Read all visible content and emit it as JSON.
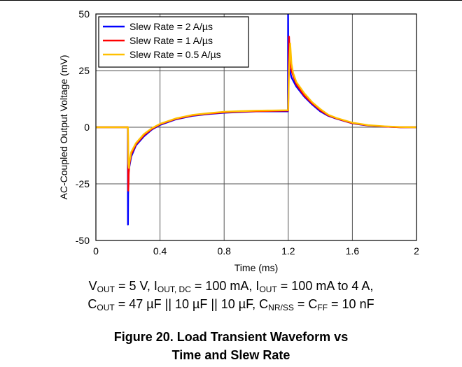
{
  "chart_data": {
    "type": "line",
    "title": "",
    "xlabel": "Time (ms)",
    "ylabel": "AC-Coupled Output Voltage (mV)",
    "xlim": [
      0,
      2
    ],
    "ylim": [
      -50,
      50
    ],
    "x_ticks": [
      0,
      0.4,
      0.8,
      1.2,
      1.6,
      2
    ],
    "x_tick_labels": [
      "0",
      "0.4",
      "0.8",
      "1.2",
      "1.6",
      "2"
    ],
    "y_ticks": [
      -50,
      -25,
      0,
      25,
      50
    ],
    "y_tick_labels": [
      "-50",
      "-25",
      "0",
      "25",
      "50"
    ],
    "grid": true,
    "legend_position": "top-left",
    "series": [
      {
        "name": "Slew Rate = 2 A/µs",
        "color": "#0000ff",
        "x": [
          0,
          0.195,
          0.199,
          0.2,
          0.201,
          0.205,
          0.22,
          0.25,
          0.3,
          0.35,
          0.4,
          0.5,
          0.6,
          0.7,
          0.8,
          0.9,
          1.0,
          1.1,
          1.198,
          1.199,
          1.2,
          1.202,
          1.21,
          1.22,
          1.25,
          1.3,
          1.35,
          1.4,
          1.45,
          1.5,
          1.6,
          1.7,
          1.8,
          1.9,
          2.0
        ],
        "y": [
          0,
          0,
          0,
          -43,
          -30,
          -19,
          -13,
          -8,
          -4,
          -1,
          1,
          3.5,
          5,
          5.8,
          6.4,
          6.7,
          7,
          7,
          7,
          50,
          34,
          27,
          25,
          22,
          18,
          13.5,
          10,
          7,
          5,
          3.8,
          1.7,
          0.7,
          0.3,
          0,
          0
        ]
      },
      {
        "name": "Slew Rate = 1 A/µs",
        "color": "#ff0000",
        "x": [
          0,
          0.195,
          0.2,
          0.202,
          0.205,
          0.21,
          0.22,
          0.25,
          0.3,
          0.35,
          0.4,
          0.5,
          0.6,
          0.7,
          0.8,
          0.9,
          1.0,
          1.1,
          1.198,
          1.2,
          1.205,
          1.21,
          1.22,
          1.25,
          1.3,
          1.35,
          1.4,
          1.45,
          1.5,
          1.6,
          1.7,
          1.8,
          1.9,
          2.0
        ],
        "y": [
          0,
          0,
          0,
          -28,
          -20,
          -16,
          -12,
          -7.5,
          -3.5,
          -0.7,
          1.3,
          3.7,
          5.2,
          6,
          6.6,
          6.9,
          7.1,
          7.2,
          7.3,
          7.3,
          40,
          30,
          25,
          19,
          14,
          10.5,
          7.5,
          5.2,
          3.9,
          1.8,
          0.8,
          0.3,
          0,
          0
        ]
      },
      {
        "name": "Slew Rate = 0.5 A/µs",
        "color": "#ffc000",
        "x": [
          0,
          0.195,
          0.2,
          0.203,
          0.206,
          0.21,
          0.22,
          0.25,
          0.3,
          0.35,
          0.4,
          0.5,
          0.6,
          0.7,
          0.8,
          0.9,
          1.0,
          1.1,
          1.199,
          1.205,
          1.212,
          1.22,
          1.23,
          1.25,
          1.3,
          1.35,
          1.4,
          1.45,
          1.5,
          1.6,
          1.7,
          1.8,
          1.9,
          2.0
        ],
        "y": [
          0,
          0,
          0,
          -16,
          -18,
          -15,
          -11,
          -7,
          -3,
          -0.4,
          1.5,
          3.9,
          5.4,
          6.2,
          6.8,
          7.1,
          7.3,
          7.4,
          7.5,
          25,
          37,
          28,
          24,
          20,
          15,
          11,
          8,
          5.5,
          4.1,
          2,
          0.9,
          0.4,
          0.1,
          0
        ]
      }
    ]
  },
  "conditions": {
    "line1": [
      {
        "t": "V"
      },
      {
        "sub": "OUT"
      },
      {
        "t": " = 5 V, I"
      },
      {
        "sub": "OUT, DC"
      },
      {
        "t": " = 100 mA, I"
      },
      {
        "sub": "OUT"
      },
      {
        "t": " = 100 mA to 4 A,"
      }
    ],
    "line2": [
      {
        "t": "C"
      },
      {
        "sub": "OUT"
      },
      {
        "t": " = 47 µF || 10 µF || 10 µF, C"
      },
      {
        "sub": "NR/SS"
      },
      {
        "t": " = C"
      },
      {
        "sub": "FF"
      },
      {
        "t": " = 10 nF"
      }
    ]
  },
  "caption": {
    "line1": "Figure 20. Load Transient Waveform vs",
    "line2": "Time and Slew Rate"
  }
}
